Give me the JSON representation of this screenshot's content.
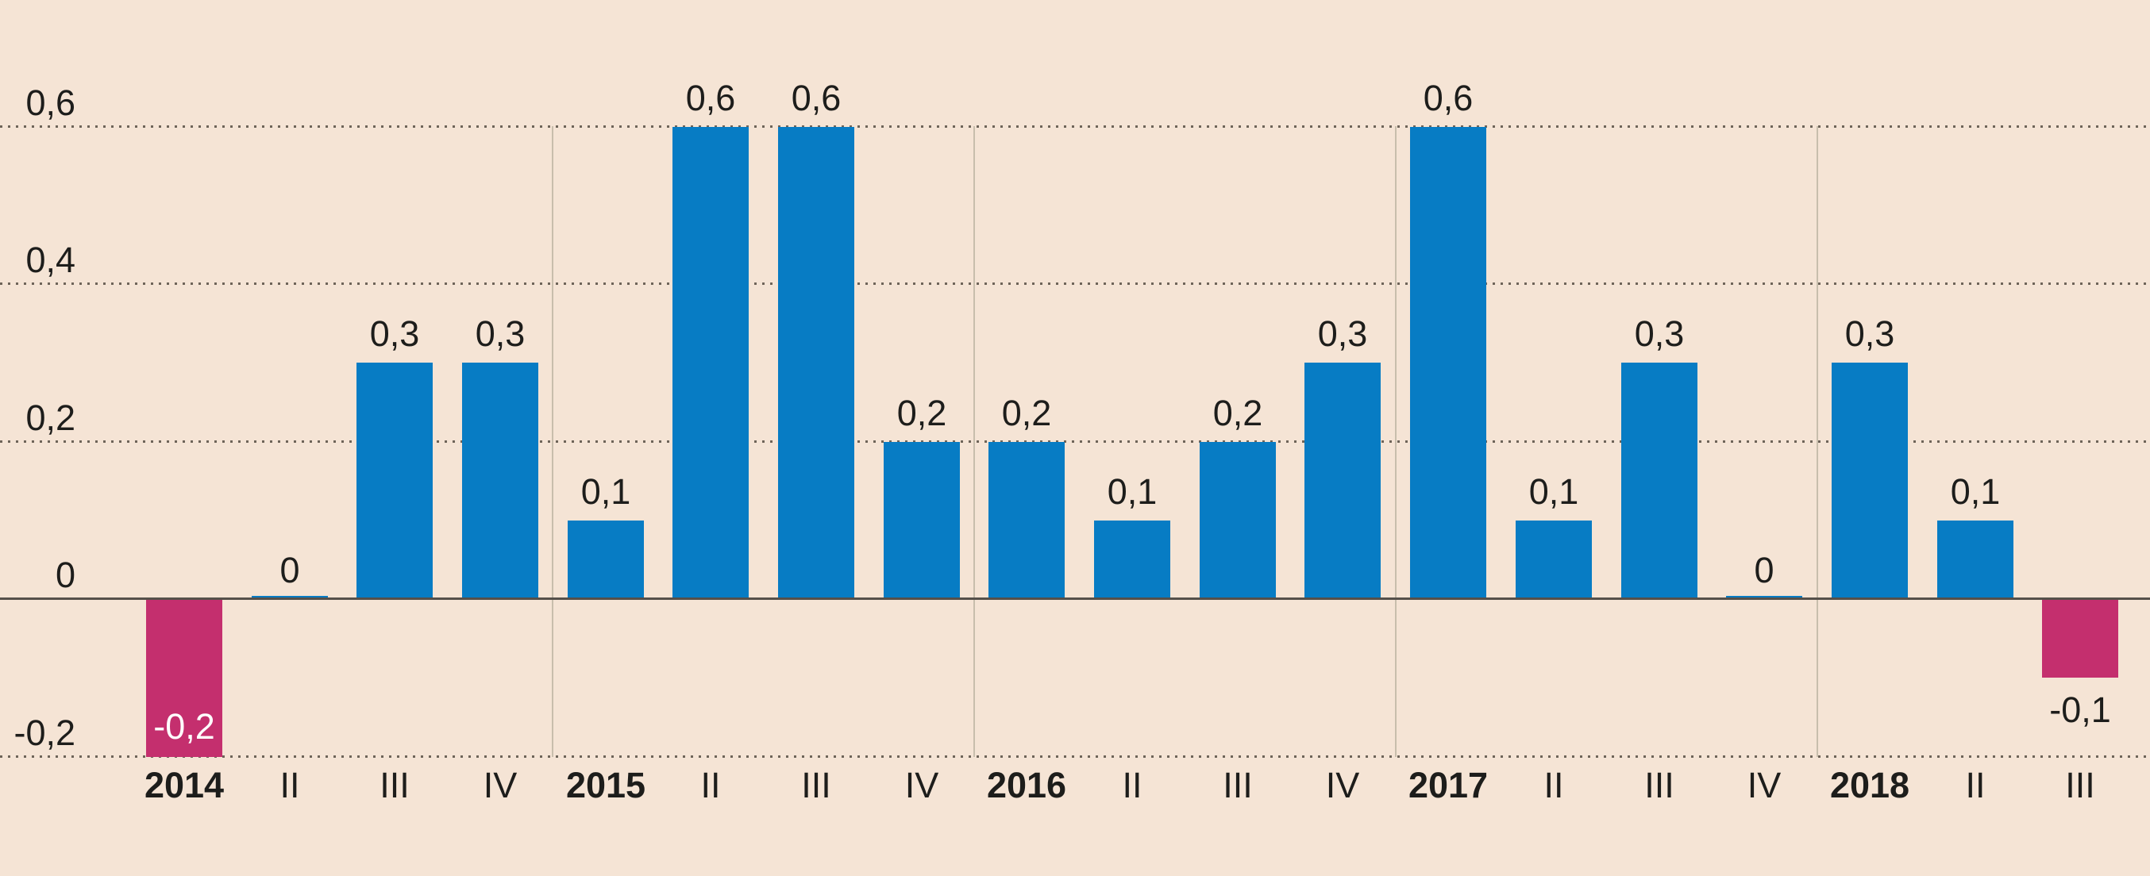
{
  "chart_data": {
    "type": "bar",
    "title": "",
    "xlabel": "",
    "ylabel": "",
    "decimal_style": "comma",
    "categories": [
      "2014",
      "II",
      "III",
      "IV",
      "2015",
      "II",
      "III",
      "IV",
      "2016",
      "II",
      "III",
      "IV",
      "2017",
      "II",
      "III",
      "IV",
      "2018",
      "II",
      "III"
    ],
    "values": [
      -0.2,
      0,
      0.3,
      0.3,
      0.1,
      0.6,
      0.6,
      0.2,
      0.2,
      0.1,
      0.2,
      0.3,
      0.6,
      0.1,
      0.3,
      0,
      0.3,
      0.1,
      -0.1
    ],
    "bars": [
      {
        "category": "2014",
        "year_start": true,
        "value": -0.2,
        "label": "-0,2",
        "label_placement": "inside"
      },
      {
        "category": "II",
        "year_start": false,
        "value": 0,
        "label": "0",
        "label_placement": "above"
      },
      {
        "category": "III",
        "year_start": false,
        "value": 0.3,
        "label": "0,3",
        "label_placement": "above"
      },
      {
        "category": "IV",
        "year_start": false,
        "value": 0.3,
        "label": "0,3",
        "label_placement": "above"
      },
      {
        "category": "2015",
        "year_start": true,
        "value": 0.1,
        "label": "0,1",
        "label_placement": "above"
      },
      {
        "category": "II",
        "year_start": false,
        "value": 0.6,
        "label": "0,6",
        "label_placement": "above"
      },
      {
        "category": "III",
        "year_start": false,
        "value": 0.6,
        "label": "0,6",
        "label_placement": "above"
      },
      {
        "category": "IV",
        "year_start": false,
        "value": 0.2,
        "label": "0,2",
        "label_placement": "above"
      },
      {
        "category": "2016",
        "year_start": true,
        "value": 0.2,
        "label": "0,2",
        "label_placement": "above"
      },
      {
        "category": "II",
        "year_start": false,
        "value": 0.1,
        "label": "0,1",
        "label_placement": "above"
      },
      {
        "category": "III",
        "year_start": false,
        "value": 0.2,
        "label": "0,2",
        "label_placement": "above"
      },
      {
        "category": "IV",
        "year_start": false,
        "value": 0.3,
        "label": "0,3",
        "label_placement": "above"
      },
      {
        "category": "2017",
        "year_start": true,
        "value": 0.6,
        "label": "0,6",
        "label_placement": "above"
      },
      {
        "category": "II",
        "year_start": false,
        "value": 0.1,
        "label": "0,1",
        "label_placement": "above"
      },
      {
        "category": "III",
        "year_start": false,
        "value": 0.3,
        "label": "0,3",
        "label_placement": "above"
      },
      {
        "category": "IV",
        "year_start": false,
        "value": 0,
        "label": "0",
        "label_placement": "above"
      },
      {
        "category": "2018",
        "year_start": true,
        "value": 0.3,
        "label": "0,3",
        "label_placement": "above"
      },
      {
        "category": "II",
        "year_start": false,
        "value": 0.1,
        "label": "0,1",
        "label_placement": "above"
      },
      {
        "category": "III",
        "year_start": false,
        "value": -0.1,
        "label": "-0,1",
        "label_placement": "below"
      }
    ],
    "y_axis": {
      "ticks": [
        {
          "value": 0.6,
          "label": "0,6"
        },
        {
          "value": 0.4,
          "label": "0,4"
        },
        {
          "value": 0.2,
          "label": "0,2"
        },
        {
          "value": 0,
          "label": "0"
        },
        {
          "value": -0.2,
          "label": "-0,2"
        }
      ],
      "range": [
        -0.3,
        0.75
      ]
    },
    "grid": {
      "horizontal_dotted_at": [
        0.6,
        0.4,
        0.2,
        -0.2
      ],
      "solid_zero_line": true,
      "vertical_year_separators_after_index": [
        3,
        7,
        11,
        15
      ]
    },
    "legend": "none",
    "colors": {
      "positive_bar": "#077cc4",
      "negative_bar": "#c42f6e",
      "background": "#f5e4d5",
      "text": "#1d1d1b",
      "inside_label_text": "#ffffff",
      "zero_axis": "#55504a",
      "dotted_grid": "#6e6459",
      "year_separator": "#c8beac"
    }
  }
}
